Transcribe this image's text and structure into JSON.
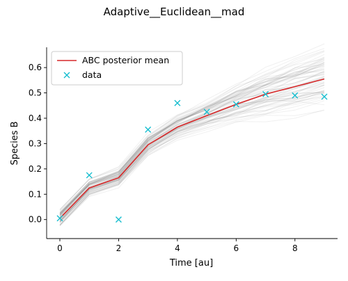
{
  "chart_data": {
    "type": "line",
    "title": "Adaptive__Euclidean__mad",
    "xlabel": "Time [au]",
    "ylabel": "Species B",
    "xlim": [
      -0.45,
      9.45
    ],
    "ylim": [
      -0.075,
      0.68
    ],
    "xticks": [
      0,
      2,
      4,
      6,
      8
    ],
    "yticks": [
      0.0,
      0.1,
      0.2,
      0.3,
      0.4,
      0.5,
      0.6
    ],
    "x": [
      0,
      1,
      2,
      3,
      4,
      5,
      6,
      7,
      8,
      9
    ],
    "series": [
      {
        "name": "ABC posterior mean",
        "kind": "line",
        "color": "#d62728",
        "values": [
          0.005,
          0.125,
          0.165,
          0.295,
          0.365,
          0.41,
          0.455,
          0.495,
          0.525,
          0.555
        ]
      },
      {
        "name": "data",
        "kind": "marker",
        "marker": "x",
        "color": "#17becf",
        "values": [
          0.005,
          0.175,
          0.0,
          0.355,
          0.46,
          0.425,
          0.455,
          0.495,
          0.49,
          0.485
        ]
      }
    ],
    "posterior_band": {
      "description_color": "#555555",
      "spread": [
        0.02,
        0.02,
        0.022,
        0.025,
        0.03,
        0.035,
        0.045,
        0.055,
        0.065,
        0.075
      ]
    },
    "legend_position": "upper-left",
    "grid": false
  }
}
